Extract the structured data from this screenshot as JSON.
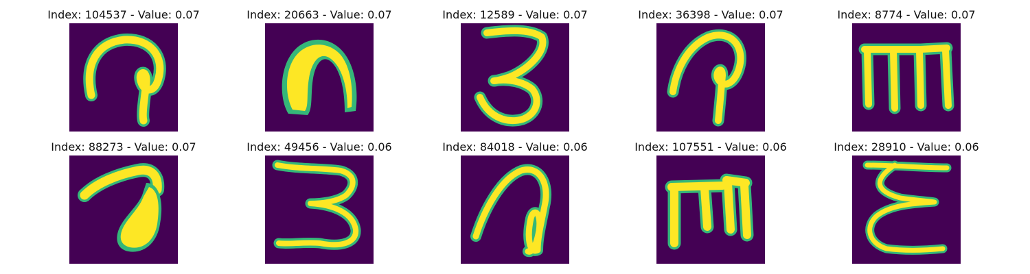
{
  "figure": {
    "panels": [
      {
        "title": "Index: 104537 - Value: 0.07",
        "glyph": "curl-hook"
      },
      {
        "title": "Index: 20663 - Value: 0.07",
        "glyph": "thick-arch"
      },
      {
        "title": "Index: 12589 - Value: 0.07",
        "glyph": "three"
      },
      {
        "title": "Index: 36398 - Value: 0.07",
        "glyph": "curl-hook-slanted"
      },
      {
        "title": "Index: 8774 - Value: 0.07",
        "glyph": "m-shape"
      },
      {
        "title": "Index: 88273 - Value: 0.07",
        "glyph": "blob-hook"
      },
      {
        "title": "Index: 49456 - Value: 0.06",
        "glyph": "three-wide"
      },
      {
        "title": "Index: 84018 - Value: 0.06",
        "glyph": "loop-arch"
      },
      {
        "title": "Index: 107551 - Value: 0.06",
        "glyph": "m-shape-short"
      },
      {
        "title": "Index: 28910 - Value: 0.06",
        "glyph": "epsilon"
      }
    ],
    "colors": {
      "background": "#440154",
      "stroke": "#fde725",
      "edge": "#35b779"
    }
  }
}
